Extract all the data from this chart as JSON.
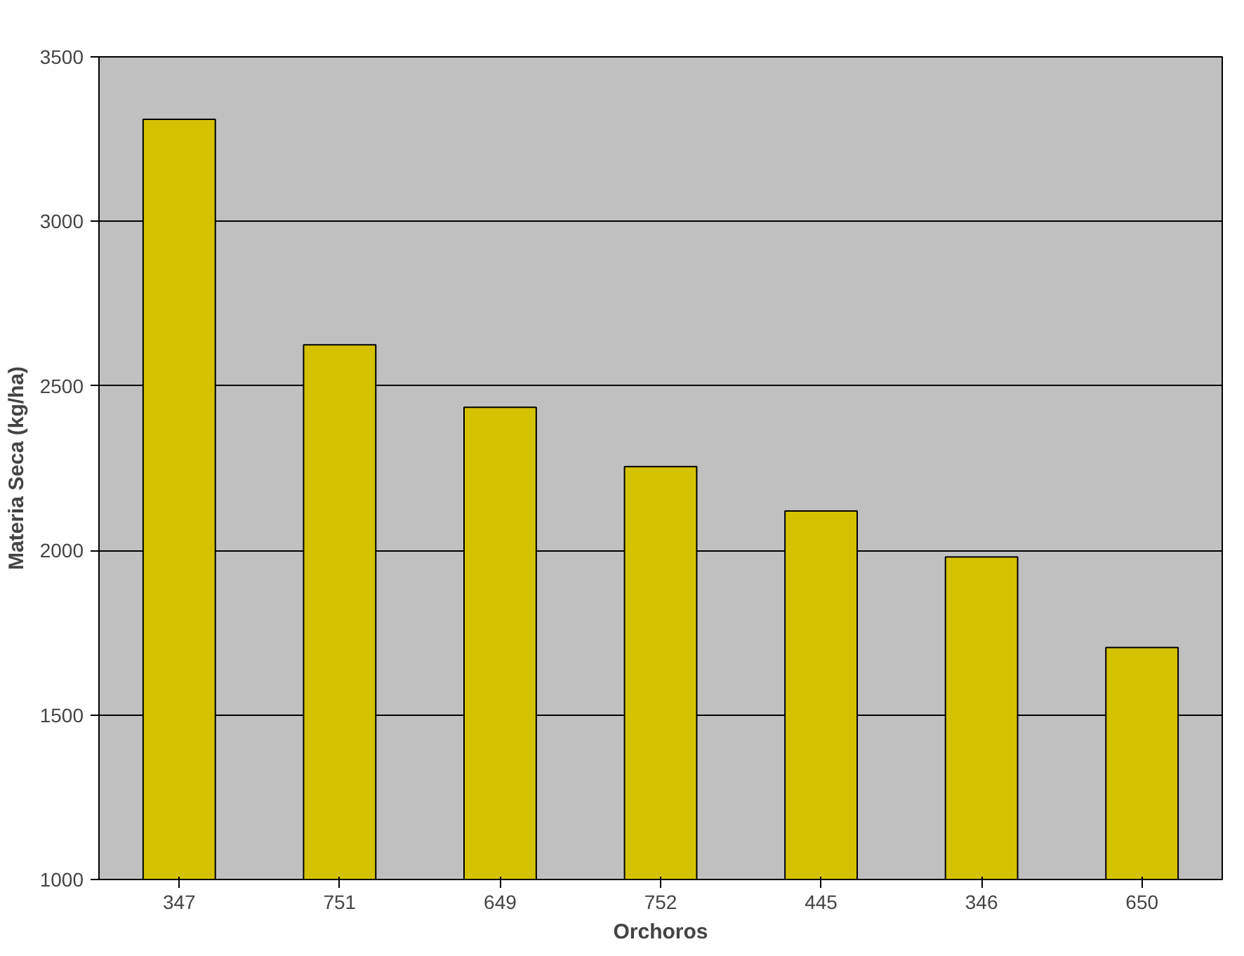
{
  "chart_data": {
    "type": "bar",
    "xlabel": "Orchoros",
    "ylabel": "Materia Seca (kg/ha)",
    "categories": [
      "347",
      "751",
      "649",
      "752",
      "445",
      "346",
      "650"
    ],
    "values": [
      3310,
      2625,
      2435,
      2255,
      2120,
      1980,
      1705
    ],
    "color": "#d4c200",
    "ylim": [
      1000,
      3500
    ],
    "yticks": [
      1000,
      1500,
      2000,
      2500,
      3000,
      3500
    ],
    "grid": "y"
  }
}
